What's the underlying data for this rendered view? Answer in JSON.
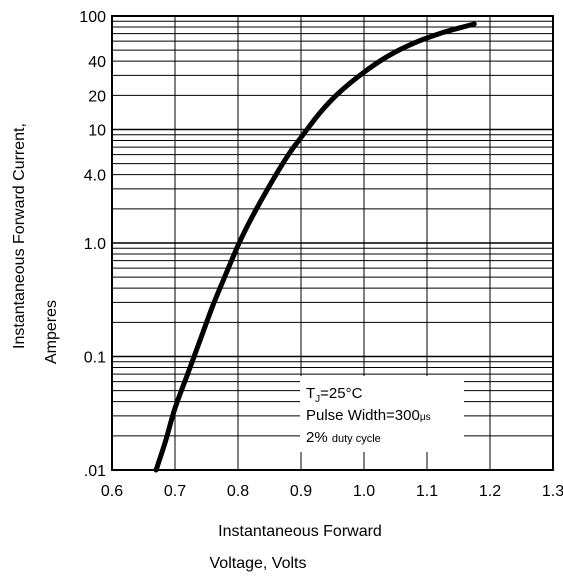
{
  "chart_data": {
    "type": "line",
    "x_scale": "linear",
    "y_scale": "log",
    "xlim": [
      0.6,
      1.3
    ],
    "ylim": [
      0.01,
      100
    ],
    "xticks": [
      "0.6",
      "0.7",
      "0.8",
      "0.9",
      "1.0",
      "1.1",
      "1.2",
      "1.3"
    ],
    "xtick_values": [
      0.6,
      0.7,
      0.8,
      0.9,
      1.0,
      1.1,
      1.2,
      1.3
    ],
    "yticks": [
      ".01",
      "0.1",
      "1.0",
      "4.0",
      "10",
      "20",
      "40",
      "100"
    ],
    "ytick_values": [
      0.01,
      0.1,
      1.0,
      4.0,
      10,
      20,
      40,
      100
    ],
    "grid": true,
    "xlabel_line1": "Instantaneous Forward",
    "xlabel_line2": "Voltage, Volts",
    "ylabel_line1": "Instantaneous Forward Current,",
    "ylabel_line2": "Amperes",
    "series": [
      {
        "color": "#000000",
        "x": [
          0.67,
          0.685,
          0.7,
          0.72,
          0.74,
          0.76,
          0.78,
          0.8,
          0.82,
          0.85,
          0.88,
          0.9,
          0.93,
          0.96,
          1.0,
          1.04,
          1.08,
          1.12,
          1.15,
          1.175
        ],
        "y": [
          0.01,
          0.018,
          0.035,
          0.07,
          0.14,
          0.28,
          0.52,
          0.95,
          1.6,
          3.2,
          6.0,
          8.5,
          14,
          21,
          32,
          45,
          58,
          70,
          78,
          85
        ]
      }
    ],
    "annotation": {
      "line1_main": "T",
      "line1_sub": "J",
      "line1_rest": "=25°C",
      "line2_main": "Pulse Width=300",
      "line2_unit": "μs",
      "line3_main": "2%",
      "line3_rest": "duty cycle"
    }
  }
}
